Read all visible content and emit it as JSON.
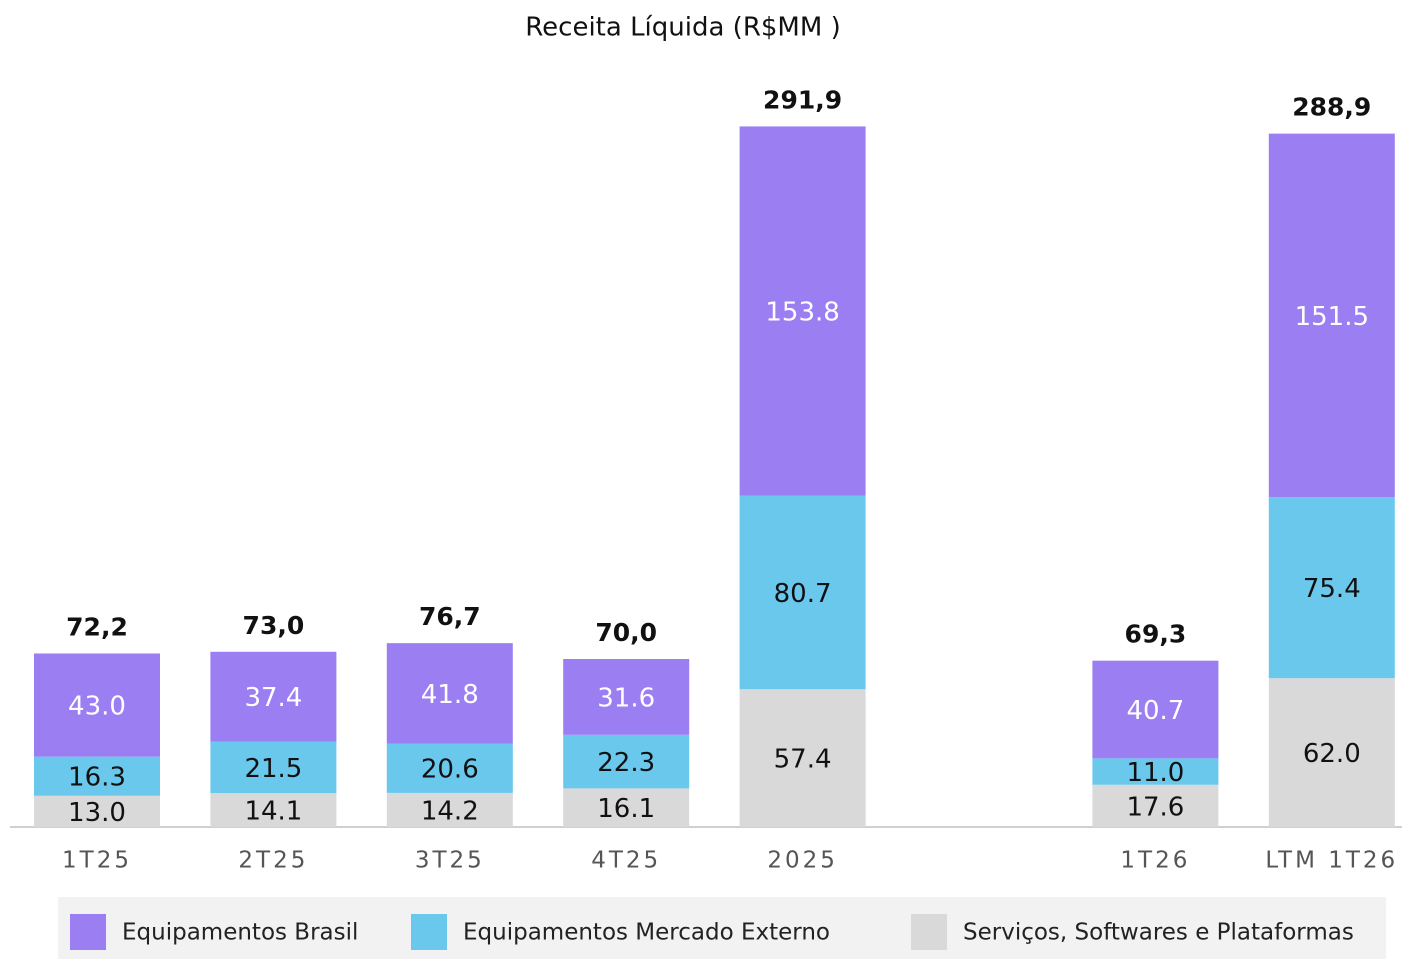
{
  "chart_data": {
    "type": "stacked_bar",
    "title": "Receita Líquida (R$MM )",
    "categories": [
      "1T25",
      "2T25",
      "3T25",
      "4T25",
      "2025",
      null,
      "1T26",
      "LTM 1T26"
    ],
    "series": [
      {
        "name": "Serviços, Softwares e Plataformas",
        "color": "#d9d9d9",
        "label_color": "#111111",
        "values": [
          13.0,
          14.1,
          14.2,
          16.1,
          57.4,
          null,
          17.6,
          62.0
        ],
        "value_labels": [
          "13.0",
          "14.1",
          "14.2",
          "16.1",
          "57.4",
          null,
          "17.6",
          "62.0"
        ]
      },
      {
        "name": "Equipamentos Mercado Externo",
        "color": "#6ac8ed",
        "label_color": "#111111",
        "values": [
          16.3,
          21.5,
          20.6,
          22.3,
          80.7,
          null,
          11.0,
          75.4
        ],
        "value_labels": [
          "16.3",
          "21.5",
          "20.6",
          "22.3",
          "80.7",
          null,
          "11.0",
          "75.4"
        ]
      },
      {
        "name": "Equipamentos Brasil",
        "color": "#9b7ef2",
        "label_color": "#ffffff",
        "values": [
          43.0,
          37.4,
          41.8,
          31.6,
          153.8,
          null,
          40.7,
          151.5
        ],
        "value_labels": [
          "43.0",
          "37.4",
          "41.8",
          "31.6",
          "153.8",
          null,
          "40.7",
          "151.5"
        ]
      }
    ],
    "totals": [
      72.2,
      73.0,
      76.7,
      70.0,
      291.9,
      null,
      69.3,
      288.9
    ],
    "total_labels": [
      "72,2",
      "73,0",
      "76,7",
      "70,0",
      "291,9",
      null,
      "69,3",
      "288,9"
    ],
    "legend_order": [
      2,
      1,
      0
    ]
  }
}
